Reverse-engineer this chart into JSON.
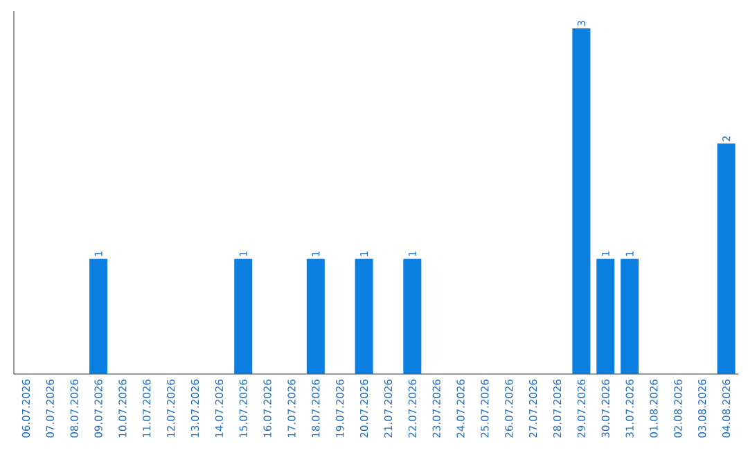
{
  "chart_data": {
    "type": "bar",
    "color": "#0a7fe0",
    "categories": [
      "06.07.2026",
      "07.07.2026",
      "08.07.2026",
      "09.07.2026",
      "10.07.2026",
      "11.07.2026",
      "12.07.2026",
      "13.07.2026",
      "14.07.2026",
      "15.07.2026",
      "16.07.2026",
      "17.07.2026",
      "18.07.2026",
      "19.07.2026",
      "20.07.2026",
      "21.07.2026",
      "22.07.2026",
      "23.07.2026",
      "24.07.2026",
      "25.07.2026",
      "26.07.2026",
      "27.07.2026",
      "28.07.2026",
      "29.07.2026",
      "30.07.2026",
      "31.07.2026",
      "01.08.2026",
      "02.08.2026",
      "03.08.2026",
      "04.08.2026"
    ],
    "values": [
      0,
      0,
      0,
      1,
      0,
      0,
      0,
      0,
      0,
      1,
      0,
      0,
      1,
      0,
      1,
      0,
      1,
      0,
      0,
      0,
      0,
      0,
      0,
      3,
      1,
      1,
      0,
      0,
      0,
      2
    ],
    "value_labels": [
      null,
      null,
      null,
      "1",
      null,
      null,
      null,
      null,
      null,
      "1",
      null,
      null,
      "1",
      null,
      "1",
      null,
      "1",
      null,
      null,
      null,
      null,
      null,
      null,
      "3",
      "1",
      "1",
      null,
      null,
      null,
      "2"
    ],
    "grid": false
  }
}
